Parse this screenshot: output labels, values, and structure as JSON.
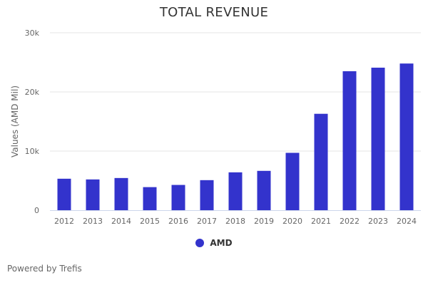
{
  "chart_data": {
    "type": "bar",
    "title": "TOTAL REVENUE",
    "xlabel": "",
    "ylabel": "Values (AMD Mil)",
    "categories": [
      "2012",
      "2013",
      "2014",
      "2015",
      "2016",
      "2017",
      "2018",
      "2019",
      "2020",
      "2021",
      "2022",
      "2023",
      "2024"
    ],
    "series": [
      {
        "name": "AMD",
        "color": "#3333cc",
        "values": [
          5320,
          5200,
          5440,
          3900,
          4270,
          5080,
          6400,
          6650,
          9700,
          16300,
          23500,
          24100,
          24800
        ]
      }
    ],
    "ylim": [
      0,
      30000
    ],
    "yticks": [
      0,
      10000,
      20000,
      30000
    ],
    "ytick_labels": [
      "0",
      "10k",
      "20k",
      "30k"
    ],
    "grid": true,
    "legend_position": "bottom-center"
  },
  "footer": {
    "credit": "Powered by Trefis"
  }
}
